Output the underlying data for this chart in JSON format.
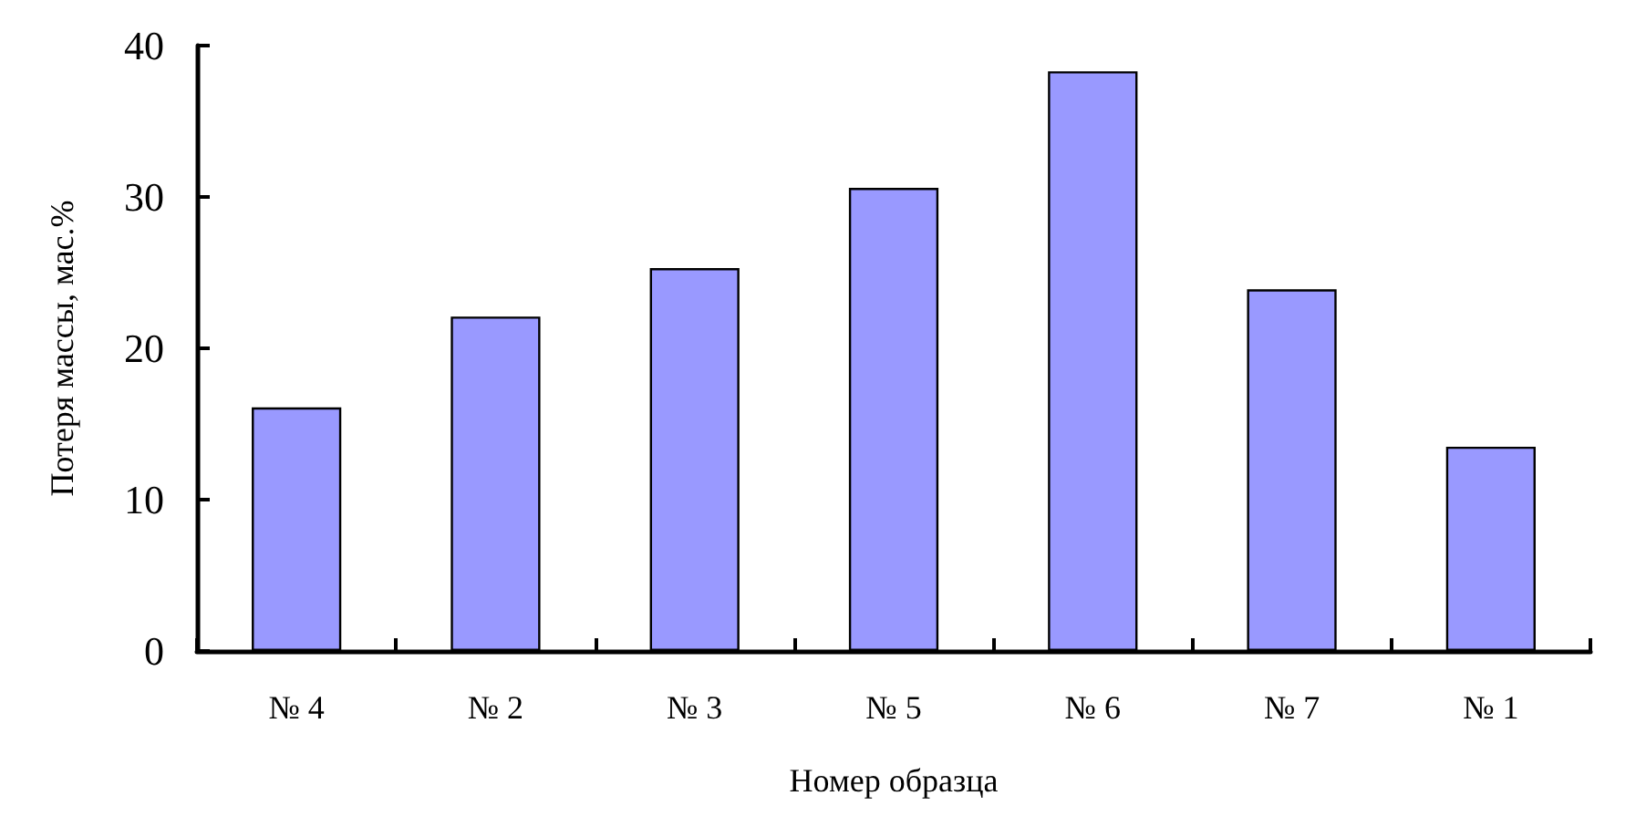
{
  "chart_data": {
    "type": "bar",
    "xlabel": "Номер образца",
    "ylabel": "Потеря массы, мас.%",
    "categories": [
      "№ 4",
      "№ 2",
      "№ 3",
      "№ 5",
      "№ 6",
      "№ 7",
      "№ 1"
    ],
    "values": [
      16.1,
      22.1,
      25.3,
      30.6,
      38.3,
      23.9,
      13.5
    ],
    "color": "#9999ff",
    "ylim": [
      0,
      40
    ],
    "yticks": [
      0,
      10,
      20,
      30,
      40
    ],
    "grid": false
  }
}
